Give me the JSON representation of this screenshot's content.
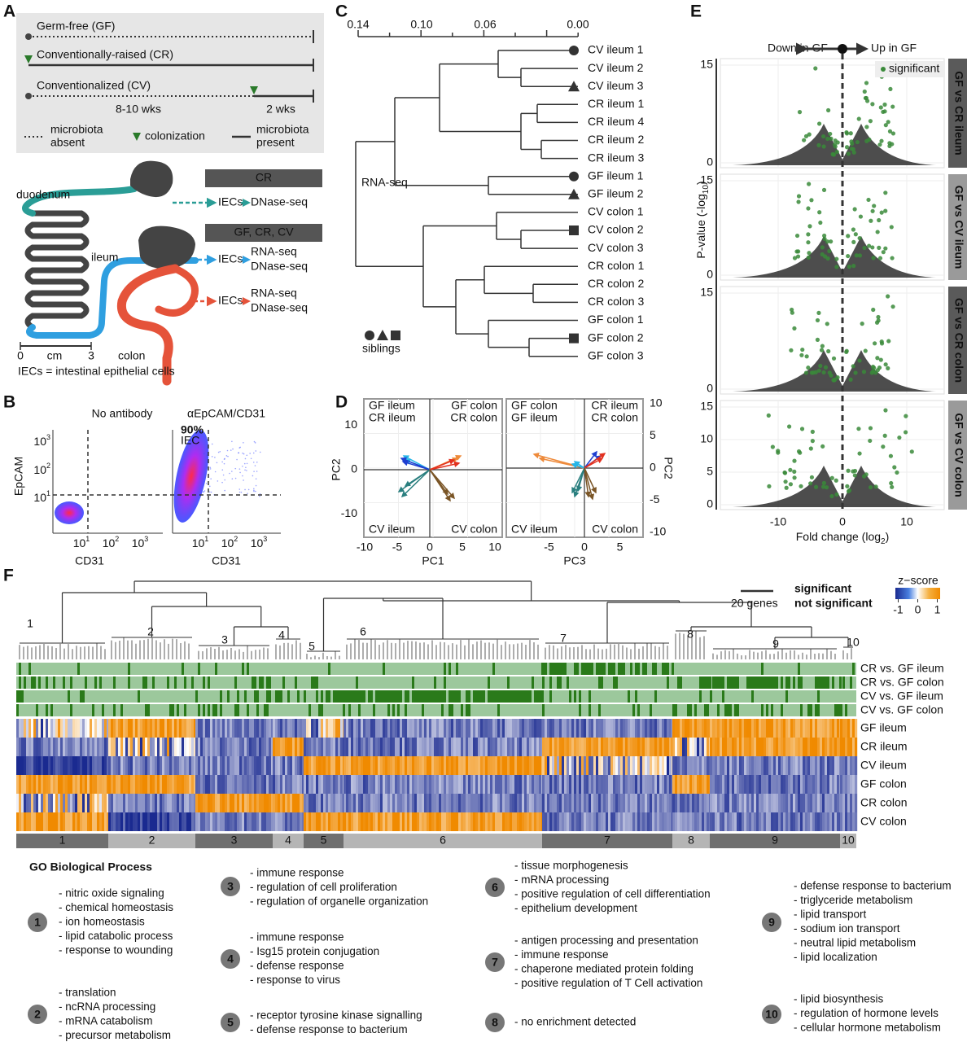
{
  "panel_a": {
    "letter": "A",
    "timelines": [
      "Germ-free (GF)",
      "Conventionally-raised (CR)",
      "Conventionalized (CV)"
    ],
    "durations": [
      "8-10 wks",
      "2 wks"
    ],
    "legend": [
      [
        "microbiota",
        "absent"
      ],
      [
        "colonization"
      ],
      [
        "microbiota",
        "present"
      ]
    ],
    "boxes": [
      "CR",
      "GF, CR, CV"
    ],
    "segments": [
      "duodenum",
      "ileum",
      "colon"
    ],
    "flows": [
      {
        "from": "IECs",
        "to": [
          "DNase-seq"
        ]
      },
      {
        "from": "IECs",
        "to": [
          "RNA-seq",
          "DNase-seq"
        ]
      },
      {
        "from": "IECs",
        "to": [
          "RNA-seq",
          "DNase-seq"
        ]
      }
    ],
    "scale": [
      "0",
      "cm",
      "3"
    ],
    "note": "IECs = intestinal epithelial cells"
  },
  "panel_b": {
    "letter": "B",
    "titles": [
      "No antibody",
      "αEpCAM/CD31"
    ],
    "gate": [
      "90%",
      "IEC"
    ],
    "ylabel": "EpCAM",
    "xlabel": "CD31",
    "yticks": [
      {
        "base": "10",
        "exp": "3"
      },
      {
        "base": "10",
        "exp": "2"
      },
      {
        "base": "10",
        "exp": "1"
      }
    ],
    "xticks": [
      {
        "base": "10",
        "exp": "1"
      },
      {
        "base": "10",
        "exp": "2"
      },
      {
        "base": "10",
        "exp": "3"
      }
    ]
  },
  "panel_c": {
    "letter": "C",
    "scale": [
      "0.14",
      "0.10",
      "0.06",
      "0.00"
    ],
    "method": "RNA-seq",
    "siblings": "siblings",
    "leaves": [
      {
        "label": "CV ileum 1",
        "color": "#2a7f7f"
      },
      {
        "label": "CV ileum 2",
        "color": "#2a7f7f"
      },
      {
        "label": "CV ileum 3",
        "color": "#2a7f7f"
      },
      {
        "label": "CR ileum 1",
        "color": "#1f3fd0"
      },
      {
        "label": "CR ileum 4",
        "color": "#1f3fd0"
      },
      {
        "label": "CR ileum 2",
        "color": "#1f3fd0"
      },
      {
        "label": "CR ileum 3",
        "color": "#1f3fd0"
      },
      {
        "label": "GF ileum 1",
        "color": "#26b6e8"
      },
      {
        "label": "GF ileum 2",
        "color": "#26b6e8"
      },
      {
        "label": "CV colon 1",
        "color": "#7a5526"
      },
      {
        "label": "CV colon 2",
        "color": "#7a5526"
      },
      {
        "label": "CV colon 3",
        "color": "#7a5526"
      },
      {
        "label": "CR colon 1",
        "color": "#e2301e"
      },
      {
        "label": "CR colon 2",
        "color": "#e2301e"
      },
      {
        "label": "CR colon 3",
        "color": "#e2301e"
      },
      {
        "label": "GF colon 1",
        "color": "#f0b070"
      },
      {
        "label": "GF colon 2",
        "color": "#f0b070"
      },
      {
        "label": "GF colon 3",
        "color": "#f0b070"
      }
    ]
  },
  "panel_d": {
    "letter": "D",
    "left": {
      "labels": [
        {
          "text": "GF ileum",
          "color": "#26b6e8"
        },
        {
          "text": "CR ileum",
          "color": "#1f3fd0"
        },
        {
          "text": "GF colon",
          "color": "#ee8a3a"
        },
        {
          "text": "CR colon",
          "color": "#e2301e"
        },
        {
          "text": "CV ileum",
          "color": "#2a7f7f"
        },
        {
          "text": "CV colon",
          "color": "#7a5526"
        }
      ],
      "xticks": [
        -10,
        -5,
        0,
        5,
        10
      ],
      "yticks": [
        10,
        0,
        -10
      ],
      "xlabel": "PC1",
      "ylabel": "PC2"
    },
    "right": {
      "labels": [
        {
          "text": "GF colon",
          "color": "#ee8a3a"
        },
        {
          "text": "GF ileum",
          "color": "#26b6e8"
        },
        {
          "text": "CR ileum",
          "color": "#1f3fd0"
        },
        {
          "text": "CR colon",
          "color": "#e2301e"
        },
        {
          "text": "CV ileum",
          "color": "#2a7f7f"
        },
        {
          "text": "CV colon",
          "color": "#7a5526"
        }
      ],
      "xticks": [
        -5,
        0,
        5
      ],
      "yticks": [
        10,
        5,
        0,
        -5,
        -10
      ],
      "xlabel": "PC3",
      "ylabel": "PC2"
    }
  },
  "panel_e": {
    "letter": "E",
    "direction": [
      "Down in GF",
      "Up in GF"
    ],
    "legend": "significant",
    "panels": [
      {
        "strip": "GF vs CR ileum",
        "yticks": [
          15,
          0
        ]
      },
      {
        "strip": "GF vs CV ileum",
        "yticks": [
          15,
          0
        ]
      },
      {
        "strip": "GF vs CR colon",
        "yticks": [
          15,
          0
        ]
      },
      {
        "strip": "GF vs CV colon",
        "yticks": [
          15,
          10,
          5,
          0
        ]
      }
    ],
    "xticks": [
      -10,
      0,
      10
    ],
    "ylabel": {
      "text": "P-value (-log",
      "sub": "10",
      "end": ")"
    },
    "xlabel": {
      "text": "Fold change (log",
      "sub": "2",
      "end": ")"
    }
  },
  "panel_f": {
    "letter": "F",
    "legend": {
      "scale": "20 genes",
      "sig": "significant",
      "nonsig": "not significant",
      "zscore": "z−score",
      "zticks": [
        -1,
        0,
        1
      ]
    },
    "comparisons": [
      "CR vs. GF ileum",
      "CR vs. GF colon",
      "CV vs. GF ileum",
      "CV vs. GF colon"
    ],
    "rows": [
      {
        "label": "GF ileum",
        "color": "#26b6e8"
      },
      {
        "label": "CR ileum",
        "color": "#1f3fd0"
      },
      {
        "label": "CV ileum",
        "color": "#2a7f7f"
      },
      {
        "label": "GF colon",
        "color": "#f0a050"
      },
      {
        "label": "CR colon",
        "color": "#e2301e"
      },
      {
        "label": "CV colon",
        "color": "#7a5526"
      }
    ],
    "go_title": "GO Biological Process",
    "clusters": [
      {
        "id": 1,
        "terms": [
          "- nitric oxide signaling",
          "- chemical homeostasis",
          "- ion homeostasis",
          "- lipid catabolic process",
          "- response to wounding"
        ]
      },
      {
        "id": 2,
        "terms": [
          "- translation",
          "- ncRNA processing",
          "- mRNA catabolism",
          "- precursor metabolism"
        ]
      },
      {
        "id": 3,
        "terms": [
          "- immune response",
          "- regulation of cell proliferation",
          "- regulation of organelle organization"
        ]
      },
      {
        "id": 4,
        "terms": [
          "- immune response",
          "- Isg15 protein conjugation",
          "- defense response",
          "- response to virus"
        ]
      },
      {
        "id": 5,
        "terms": [
          "- receptor tyrosine kinase signalling",
          "- defense response to bacterium"
        ]
      },
      {
        "id": 6,
        "terms": [
          "- tissue morphogenesis",
          "- mRNA processing",
          "- positive regulation of cell differentiation",
          "- epithelium development"
        ]
      },
      {
        "id": 7,
        "terms": [
          "- antigen processing and presentation",
          "- immune response",
          "- chaperone mediated protein folding",
          "- positive regulation of T Cell activation"
        ]
      },
      {
        "id": 8,
        "terms": [
          "- no enrichment detected"
        ]
      },
      {
        "id": 9,
        "terms": [
          "- defense response to bacterium",
          "- triglyceride metabolism",
          "- lipid transport",
          "- sodium ion transport",
          "- neutral lipid metabolism",
          "- lipid localization"
        ]
      },
      {
        "id": 10,
        "terms": [
          "- lipid biosynthesis",
          "- regulation of hormone levels",
          "- cellular hormone metabolism"
        ]
      }
    ]
  }
}
